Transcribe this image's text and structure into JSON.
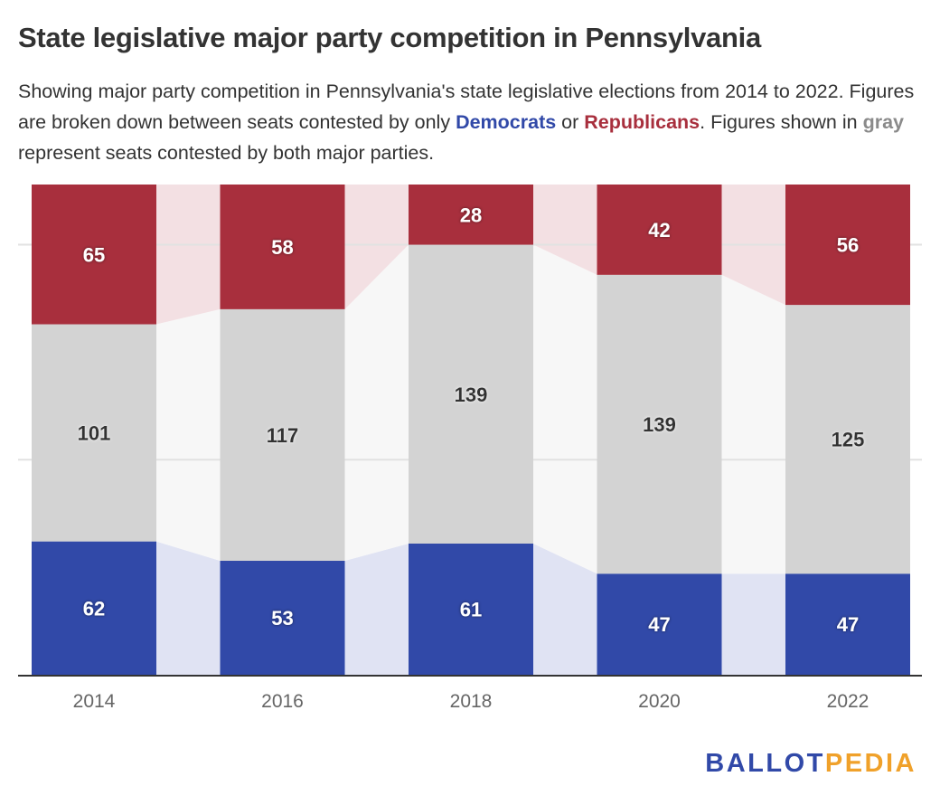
{
  "title": "State legislative major party competition in Pennsylvania",
  "subtitle": {
    "part1": "Showing major party competition in Pennsylvania's state legislative elections from 2014 to 2022. Figures are broken down between seats contested by only ",
    "democrats": "Democrats",
    "or": " or ",
    "republicans": "Republicans",
    "part2": ". Figures shown in ",
    "gray": "gray",
    "part3": " represent seats contested by both major parties."
  },
  "colors": {
    "democrat": "#3149a8",
    "republican": "#a82f3d",
    "both": "#d3d3d3",
    "democrat_light": "#e0e3f3",
    "republican_light": "#f3e0e3",
    "both_light": "#f7f7f7"
  },
  "logo": {
    "part1": "BALLOT",
    "part2": "PEDIA"
  },
  "chart_data": {
    "type": "bar",
    "stacked": true,
    "categories": [
      "2014",
      "2016",
      "2018",
      "2020",
      "2022"
    ],
    "series": [
      {
        "name": "Democrats only",
        "values": [
          62,
          53,
          61,
          47,
          47
        ]
      },
      {
        "name": "Both major parties",
        "values": [
          101,
          117,
          139,
          139,
          125
        ]
      },
      {
        "name": "Republicans only",
        "values": [
          65,
          58,
          28,
          42,
          56
        ]
      }
    ],
    "ylim": [
      0,
      228
    ],
    "gridlines": [
      100,
      200
    ],
    "xlabel": "",
    "ylabel": "",
    "legend": "none"
  }
}
